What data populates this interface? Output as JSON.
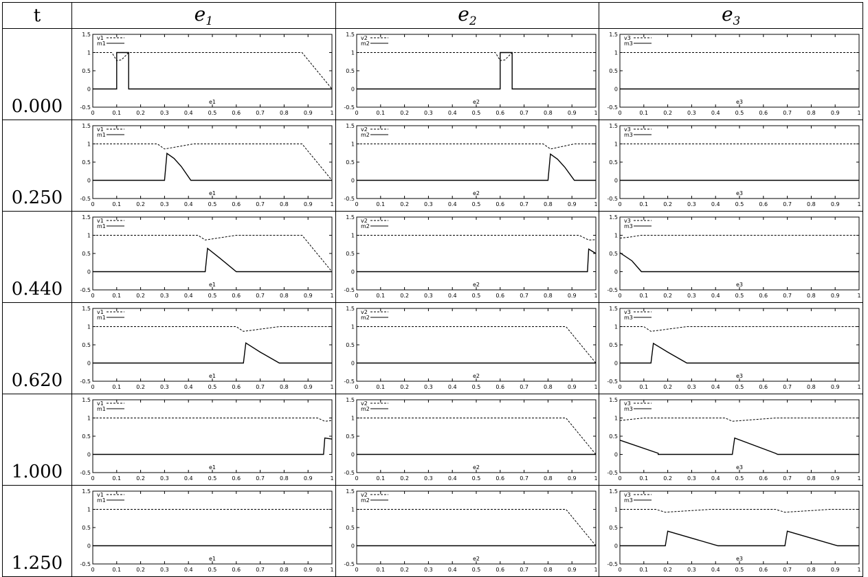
{
  "header": {
    "t": "t",
    "col_base": "e",
    "cols": [
      "1",
      "2",
      "3"
    ]
  },
  "times": [
    "0.000",
    "0.250",
    "0.440",
    "0.620",
    "1.000",
    "1.250"
  ],
  "chart_data": {
    "type": "line",
    "xlim": [
      0,
      1
    ],
    "ylim": [
      -0.5,
      1.5
    ],
    "xticks": [
      "0",
      "0.1",
      "0.2",
      "0.3",
      "0.4",
      "0.5",
      "0.6",
      "0.7",
      "0.8",
      "0.9",
      "1"
    ],
    "yticks": [
      "1.5",
      "1",
      "0.5",
      "0",
      "-0.5"
    ],
    "panels": [
      [
        {
          "xlabel": "e1",
          "legend": [
            "v1",
            "m1"
          ],
          "v": [
            [
              0,
              1
            ],
            [
              0.08,
              1
            ],
            [
              0.1,
              0.78
            ],
            [
              0.12,
              0.8
            ],
            [
              0.15,
              1
            ],
            [
              0.875,
              1
            ],
            [
              1,
              0
            ]
          ],
          "m": [
            [
              0,
              0
            ],
            [
              0.1,
              0
            ],
            [
              0.1,
              1
            ],
            [
              0.15,
              1
            ],
            [
              0.15,
              0
            ],
            [
              1,
              0
            ]
          ]
        },
        {
          "xlabel": "e2",
          "legend": [
            "v2",
            "m2"
          ],
          "v": [
            [
              0,
              1
            ],
            [
              0.58,
              1
            ],
            [
              0.6,
              0.78
            ],
            [
              0.62,
              0.8
            ],
            [
              0.65,
              1
            ],
            [
              1,
              1
            ]
          ],
          "m": [
            [
              0,
              0
            ],
            [
              0.6,
              0
            ],
            [
              0.6,
              1
            ],
            [
              0.65,
              1
            ],
            [
              0.65,
              0
            ],
            [
              1,
              0
            ]
          ]
        },
        {
          "xlabel": "e3",
          "legend": [
            "v3",
            "m3"
          ],
          "v": [
            [
              0,
              1
            ],
            [
              1,
              1
            ]
          ],
          "m": [
            [
              0,
              0
            ],
            [
              1,
              0
            ]
          ]
        }
      ],
      [
        {
          "xlabel": "e1",
          "legend": [
            "v1",
            "m1"
          ],
          "v": [
            [
              0,
              1
            ],
            [
              0.27,
              1
            ],
            [
              0.3,
              0.86
            ],
            [
              0.42,
              1
            ],
            [
              0.875,
              1
            ],
            [
              1,
              0
            ]
          ],
          "m": [
            [
              0,
              0
            ],
            [
              0.3,
              0
            ],
            [
              0.31,
              0.74
            ],
            [
              0.34,
              0.6
            ],
            [
              0.37,
              0.38
            ],
            [
              0.41,
              0
            ],
            [
              1,
              0
            ]
          ]
        },
        {
          "xlabel": "e2",
          "legend": [
            "v2",
            "m2"
          ],
          "v": [
            [
              0,
              1
            ],
            [
              0.78,
              1
            ],
            [
              0.81,
              0.86
            ],
            [
              0.91,
              1
            ],
            [
              1,
              1
            ]
          ],
          "m": [
            [
              0,
              0
            ],
            [
              0.8,
              0
            ],
            [
              0.81,
              0.72
            ],
            [
              0.84,
              0.58
            ],
            [
              0.87,
              0.36
            ],
            [
              0.91,
              0
            ],
            [
              1,
              0
            ]
          ]
        },
        {
          "xlabel": "e3",
          "legend": [
            "v3",
            "m3"
          ],
          "v": [
            [
              0,
              1
            ],
            [
              1,
              1
            ]
          ],
          "m": [
            [
              0,
              0
            ],
            [
              1,
              0
            ]
          ]
        }
      ],
      [
        {
          "xlabel": "e1",
          "legend": [
            "v1",
            "m1"
          ],
          "v": [
            [
              0,
              1
            ],
            [
              0.44,
              1
            ],
            [
              0.47,
              0.87
            ],
            [
              0.6,
              1
            ],
            [
              0.875,
              1
            ],
            [
              1,
              0
            ]
          ],
          "m": [
            [
              0,
              0
            ],
            [
              0.47,
              0
            ],
            [
              0.48,
              0.64
            ],
            [
              0.53,
              0.38
            ],
            [
              0.6,
              0
            ],
            [
              1,
              0
            ]
          ]
        },
        {
          "xlabel": "e2",
          "legend": [
            "v2",
            "m2"
          ],
          "v": [
            [
              0,
              1
            ],
            [
              0.93,
              1
            ],
            [
              0.97,
              0.87
            ],
            [
              1,
              0.88
            ]
          ],
          "m": [
            [
              0,
              0
            ],
            [
              0.965,
              0
            ],
            [
              0.97,
              0.62
            ],
            [
              1,
              0.5
            ]
          ]
        },
        {
          "xlabel": "e3",
          "legend": [
            "v3",
            "m3"
          ],
          "v": [
            [
              0,
              0.92
            ],
            [
              0.04,
              0.95
            ],
            [
              0.09,
              1
            ],
            [
              1,
              1
            ]
          ],
          "m": [
            [
              0,
              0.52
            ],
            [
              0.05,
              0.3
            ],
            [
              0.09,
              0
            ],
            [
              1,
              0
            ]
          ]
        }
      ],
      [
        {
          "xlabel": "e1",
          "legend": [
            "v1",
            "m1"
          ],
          "v": [
            [
              0,
              1
            ],
            [
              0.6,
              1
            ],
            [
              0.63,
              0.87
            ],
            [
              0.78,
              1
            ],
            [
              1,
              1
            ]
          ],
          "m": [
            [
              0,
              0
            ],
            [
              0.63,
              0
            ],
            [
              0.64,
              0.55
            ],
            [
              0.7,
              0.3
            ],
            [
              0.78,
              0
            ],
            [
              1,
              0
            ]
          ]
        },
        {
          "xlabel": "e2",
          "legend": [
            "v2",
            "m2"
          ],
          "v": [
            [
              0,
              1
            ],
            [
              0.875,
              1
            ],
            [
              1,
              0
            ]
          ],
          "m": [
            [
              0,
              0
            ],
            [
              1,
              0
            ]
          ]
        },
        {
          "xlabel": "e3",
          "legend": [
            "v3",
            "m3"
          ],
          "v": [
            [
              0,
              1
            ],
            [
              0.1,
              1
            ],
            [
              0.13,
              0.87
            ],
            [
              0.28,
              1
            ],
            [
              1,
              1
            ]
          ],
          "m": [
            [
              0,
              0
            ],
            [
              0.13,
              0
            ],
            [
              0.14,
              0.54
            ],
            [
              0.2,
              0.3
            ],
            [
              0.28,
              0
            ],
            [
              1,
              0
            ]
          ]
        }
      ],
      [
        {
          "xlabel": "e1",
          "legend": [
            "v1",
            "m1"
          ],
          "v": [
            [
              0,
              1
            ],
            [
              0.94,
              1
            ],
            [
              0.97,
              0.91
            ],
            [
              1,
              0.93
            ]
          ],
          "m": [
            [
              0,
              0
            ],
            [
              0.965,
              0
            ],
            [
              0.97,
              0.45
            ],
            [
              1,
              0.42
            ]
          ]
        },
        {
          "xlabel": "e2",
          "legend": [
            "v2",
            "m2"
          ],
          "v": [
            [
              0,
              1
            ],
            [
              0.875,
              1
            ],
            [
              1,
              0
            ]
          ],
          "m": [
            [
              0,
              0
            ],
            [
              1,
              0
            ]
          ]
        },
        {
          "xlabel": "e3",
          "legend": [
            "v3",
            "m3"
          ],
          "v": [
            [
              0,
              0.93
            ],
            [
              0.1,
              1
            ],
            [
              0.44,
              1
            ],
            [
              0.47,
              0.91
            ],
            [
              0.65,
              1
            ],
            [
              1,
              1
            ]
          ],
          "m": [
            [
              0,
              0.39
            ],
            [
              0.16,
              0.03
            ],
            [
              0.16,
              0
            ],
            [
              0.47,
              0
            ],
            [
              0.48,
              0.45
            ],
            [
              0.65,
              0.03
            ],
            [
              0.66,
              0
            ],
            [
              1,
              0
            ]
          ]
        }
      ],
      [
        {
          "xlabel": "e1",
          "legend": [
            "v1",
            "m1"
          ],
          "v": [
            [
              0,
              1
            ],
            [
              1,
              1
            ]
          ],
          "m": [
            [
              0,
              0
            ],
            [
              1,
              0
            ]
          ]
        },
        {
          "xlabel": "e2",
          "legend": [
            "v2",
            "m2"
          ],
          "v": [
            [
              0,
              1
            ],
            [
              0.875,
              1
            ],
            [
              1,
              0
            ]
          ],
          "m": [
            [
              0,
              0
            ],
            [
              1,
              0
            ]
          ]
        },
        {
          "xlabel": "e3",
          "legend": [
            "v3",
            "m3"
          ],
          "v": [
            [
              0,
              1
            ],
            [
              0.15,
              1
            ],
            [
              0.19,
              0.92
            ],
            [
              0.38,
              1
            ],
            [
              0.65,
              1
            ],
            [
              0.69,
              0.92
            ],
            [
              0.88,
              1
            ],
            [
              1,
              1
            ]
          ],
          "m": [
            [
              0,
              0
            ],
            [
              0.19,
              0
            ],
            [
              0.2,
              0.4
            ],
            [
              0.41,
              0
            ],
            [
              0.69,
              0
            ],
            [
              0.7,
              0.4
            ],
            [
              0.91,
              0
            ],
            [
              1,
              0
            ]
          ]
        }
      ]
    ]
  }
}
